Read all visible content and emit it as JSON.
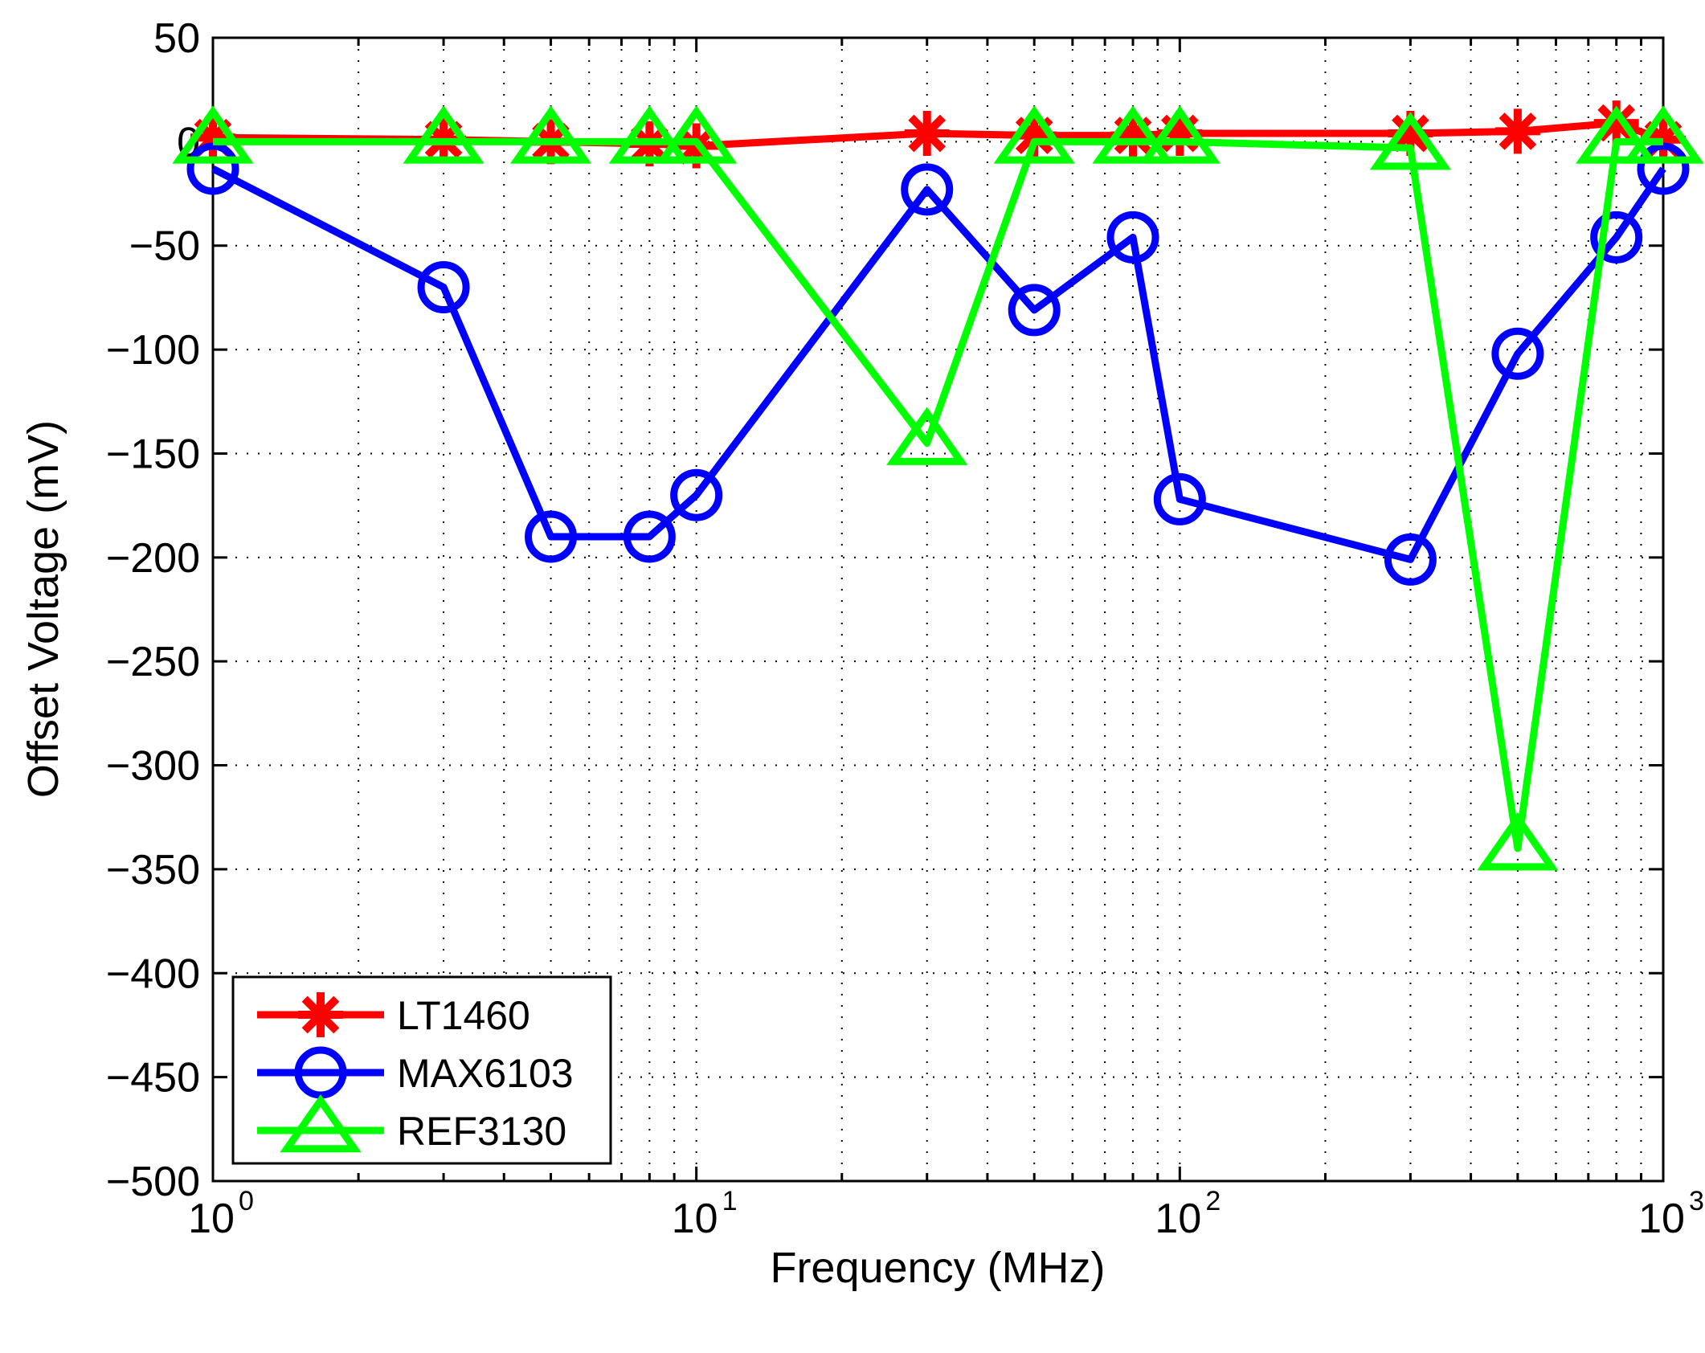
{
  "chart_data": {
    "type": "line",
    "title": "",
    "xlabel": "Frequency (MHz)",
    "ylabel": "Offset Voltage (mV)",
    "xscale": "log",
    "xlim": [
      1,
      1000
    ],
    "ylim": [
      -500,
      50
    ],
    "grid": true,
    "legend_position": "bottom-left",
    "yticks": [
      50,
      0,
      -50,
      -100,
      -150,
      -200,
      -250,
      -300,
      -350,
      -400,
      -450,
      -500
    ],
    "ytick_labels": [
      "50",
      "0",
      "−50",
      "−100",
      "−150",
      "−200",
      "−250",
      "−300",
      "−350",
      "−400",
      "−450",
      "−500"
    ],
    "xticks": [
      {
        "base": "10",
        "exp": "0"
      },
      {
        "base": "10",
        "exp": "1"
      },
      {
        "base": "10",
        "exp": "2"
      },
      {
        "base": "10",
        "exp": "3"
      }
    ],
    "x": [
      1,
      3,
      5,
      8,
      10,
      30,
      50,
      80,
      100,
      300,
      500,
      800,
      1000
    ],
    "series": [
      {
        "name": "LT1460",
        "color": "#ff0000",
        "marker": "asterisk",
        "values": [
          2,
          1,
          0,
          -1,
          -2,
          4,
          3,
          3,
          4,
          4,
          5,
          9,
          1
        ]
      },
      {
        "name": "MAX6103",
        "color": "#0000ff",
        "marker": "circle",
        "values": [
          -13,
          -70,
          -190,
          -190,
          -170,
          -23,
          -81,
          -46,
          -172,
          -201,
          -102,
          -46,
          -13
        ]
      },
      {
        "name": "REF3130",
        "color": "#00ff00",
        "marker": "triangle",
        "values": [
          0,
          0,
          0,
          0,
          0,
          -145,
          0,
          0,
          0,
          -3,
          -340,
          0,
          0
        ]
      }
    ]
  }
}
